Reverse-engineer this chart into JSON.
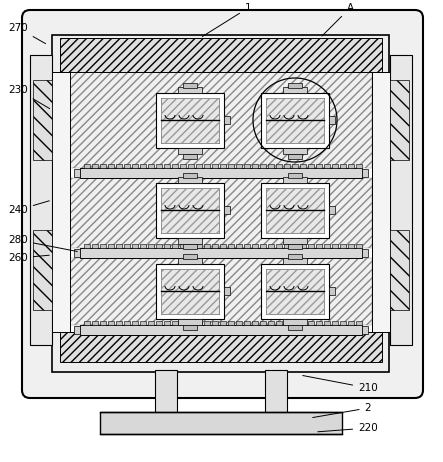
{
  "fig_width": 4.43,
  "fig_height": 4.62,
  "dpi": 100,
  "bg_color": "#ffffff",
  "label_fs": 7.5
}
